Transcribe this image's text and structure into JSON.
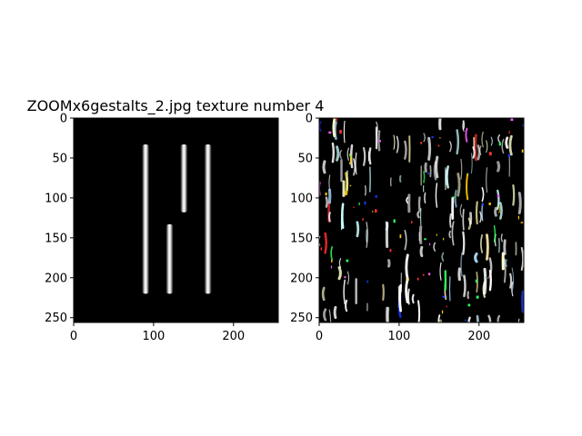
{
  "figure": {
    "title": "ZOOMx6gestalts_2.jpg texture number 4"
  },
  "chart_data": [
    {
      "type": "image",
      "panel": "left",
      "title": "ZOOMx6gestalts_2.jpg texture number 4",
      "xlim": [
        0,
        256
      ],
      "ylim": [
        256,
        0
      ],
      "xticks": [
        0,
        100,
        200
      ],
      "yticks": [
        0,
        50,
        100,
        150,
        200,
        250
      ],
      "background": "#000000",
      "bars": [
        {
          "x": 90,
          "y0": 33,
          "y1": 220
        },
        {
          "x": 120,
          "y0": 133,
          "y1": 220
        },
        {
          "x": 138,
          "y0": 33,
          "y1": 118
        },
        {
          "x": 168,
          "y0": 33,
          "y1": 220
        }
      ]
    },
    {
      "type": "image",
      "panel": "right",
      "xlim": [
        0,
        256
      ],
      "ylim": [
        256,
        0
      ],
      "xticks": [
        0,
        100,
        200
      ],
      "yticks": [
        0,
        50,
        100,
        150,
        200,
        250
      ],
      "background": "#000000",
      "streak_colors": [
        "#ffffff",
        "#ffffcc",
        "#ccffff",
        "#aaddff",
        "#ffeeaa",
        "#1a3cff",
        "#ff3030",
        "#30ff60",
        "#ff60ff",
        "#ffd000"
      ]
    }
  ]
}
